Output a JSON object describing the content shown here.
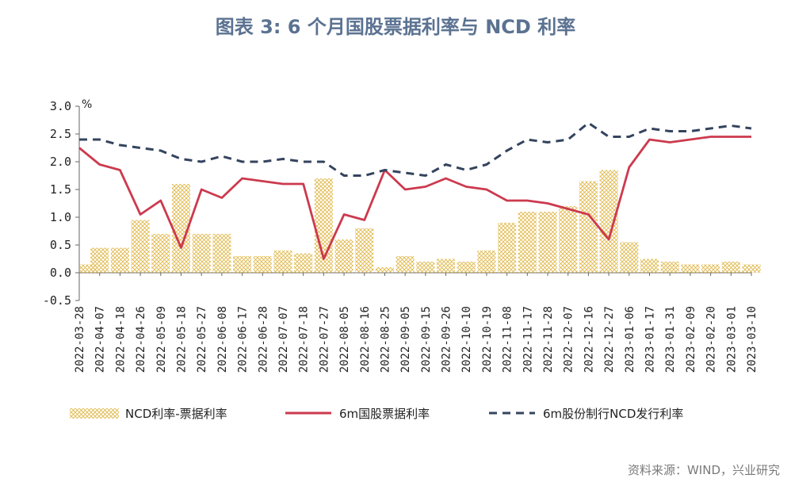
{
  "title": "图表 3:  6 个月国股票据利率与 NCD 利率",
  "source": "资料来源：WIND，兴业研究",
  "chart_data": {
    "type": "line",
    "unit": "%",
    "ylim": [
      -0.5,
      3.0
    ],
    "yticks": [
      "3.0",
      "2.5",
      "2.0",
      "1.5",
      "1.0",
      "0.5",
      "0.0",
      "-0.5"
    ],
    "categories": [
      "2022-03-28",
      "2022-04-07",
      "2022-04-18",
      "2022-04-26",
      "2022-05-09",
      "2022-05-18",
      "2022-05-27",
      "2022-06-08",
      "2022-06-17",
      "2022-06-28",
      "2022-07-07",
      "2022-07-18",
      "2022-07-27",
      "2022-08-05",
      "2022-08-16",
      "2022-08-25",
      "2022-09-05",
      "2022-09-15",
      "2022-09-26",
      "2022-10-10",
      "2022-10-19",
      "2022-11-08",
      "2022-11-17",
      "2022-11-28",
      "2022-12-07",
      "2022-12-16",
      "2022-12-27",
      "2023-01-06",
      "2023-01-17",
      "2023-01-31",
      "2023-02-09",
      "2023-02-20",
      "2023-03-01",
      "2023-03-10"
    ],
    "legend_position": "bottom",
    "series": [
      {
        "name": "NCD利率-票据利率",
        "style": "hatch-area",
        "color": "#e0b84a",
        "values": [
          0.15,
          0.45,
          0.45,
          0.95,
          0.7,
          1.6,
          0.7,
          0.7,
          0.3,
          0.3,
          0.4,
          0.35,
          1.7,
          0.6,
          0.8,
          0.1,
          0.3,
          0.2,
          0.25,
          0.2,
          0.4,
          0.9,
          1.1,
          1.1,
          1.2,
          1.65,
          1.85,
          0.55,
          0.25,
          0.2,
          0.15,
          0.15,
          0.2,
          0.15
        ]
      },
      {
        "name": "6m国股票据利率",
        "style": "solid",
        "color": "#cc3a4e",
        "values": [
          2.25,
          1.95,
          1.85,
          1.05,
          1.3,
          0.45,
          1.5,
          1.35,
          1.7,
          1.65,
          1.6,
          1.6,
          0.25,
          1.05,
          0.95,
          1.85,
          1.5,
          1.55,
          1.7,
          1.55,
          1.5,
          1.3,
          1.3,
          1.25,
          1.15,
          1.05,
          0.6,
          1.9,
          2.4,
          2.35,
          2.4,
          2.45,
          2.45,
          2.45
        ]
      },
      {
        "name": "6m股份制行NCD发行利率",
        "style": "dashed",
        "color": "#34445e",
        "values": [
          2.4,
          2.4,
          2.3,
          2.25,
          2.2,
          2.05,
          2.0,
          2.1,
          2.0,
          2.0,
          2.05,
          2.0,
          2.0,
          1.75,
          1.75,
          1.85,
          1.8,
          1.75,
          1.95,
          1.85,
          1.95,
          2.2,
          2.4,
          2.35,
          2.4,
          2.7,
          2.45,
          2.45,
          2.6,
          2.55,
          2.55,
          2.6,
          2.65,
          2.6
        ]
      }
    ]
  }
}
